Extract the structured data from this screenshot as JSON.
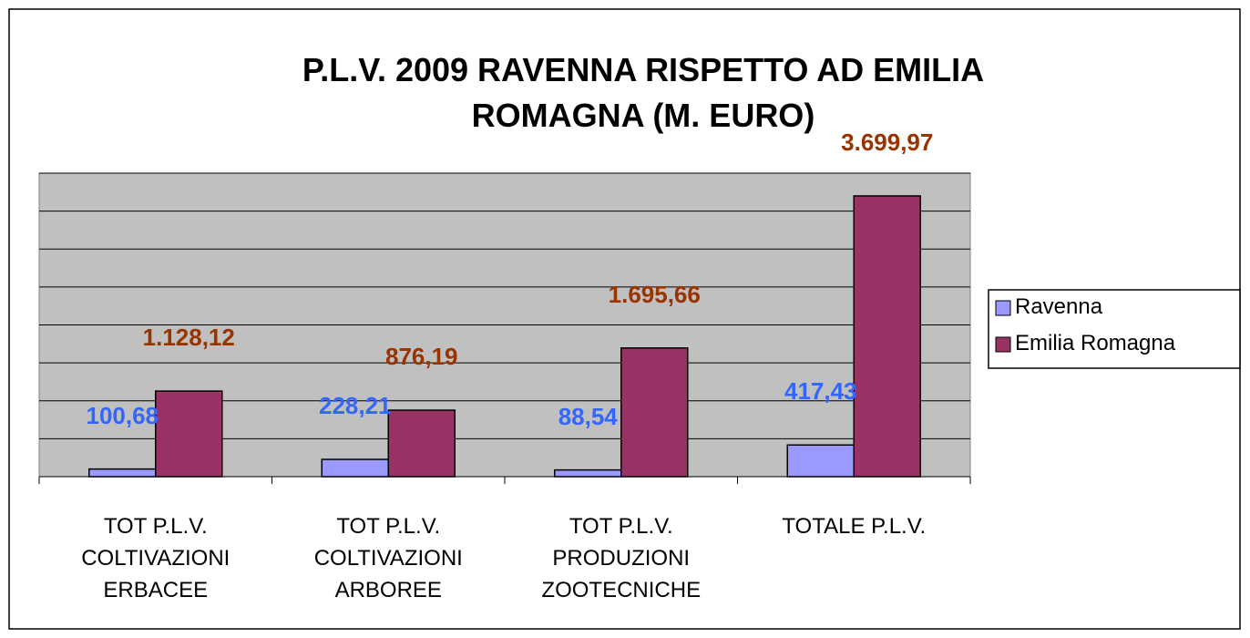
{
  "chart_data": {
    "type": "bar",
    "title": "P.L.V. 2009 RAVENNA RISPETTO AD EMILIA\nROMAGNA (M. EURO)",
    "categories": [
      "TOT P.L.V.\nCOLTIVAZIONI\nERBACEE",
      "TOT P.L.V.\nCOLTIVAZIONI\nARBOREE",
      "TOT P.L.V.\nPRODUZIONI\nZOOTECNICHE",
      "TOTALE P.L.V."
    ],
    "series": [
      {
        "name": "Ravenna",
        "color": "#9999ff",
        "label_color": "#3366ff",
        "values": [
          100.68,
          228.21,
          88.54,
          417.43
        ],
        "value_labels": [
          "100,68",
          "228,21",
          "88,54",
          "417,43"
        ]
      },
      {
        "name": "Emilia Romagna",
        "color": "#993366",
        "label_color": "#993300",
        "values": [
          1128.12,
          876.19,
          1695.66,
          3699.97
        ],
        "value_labels": [
          "1.128,12",
          "876,19",
          "1.695,66",
          "3.699,97"
        ]
      }
    ],
    "ylim": [
      0,
      4000
    ],
    "yticks": [
      0,
      500,
      1000,
      1500,
      2000,
      2500,
      3000,
      3500,
      4000
    ],
    "grid": true,
    "legend": "right"
  }
}
